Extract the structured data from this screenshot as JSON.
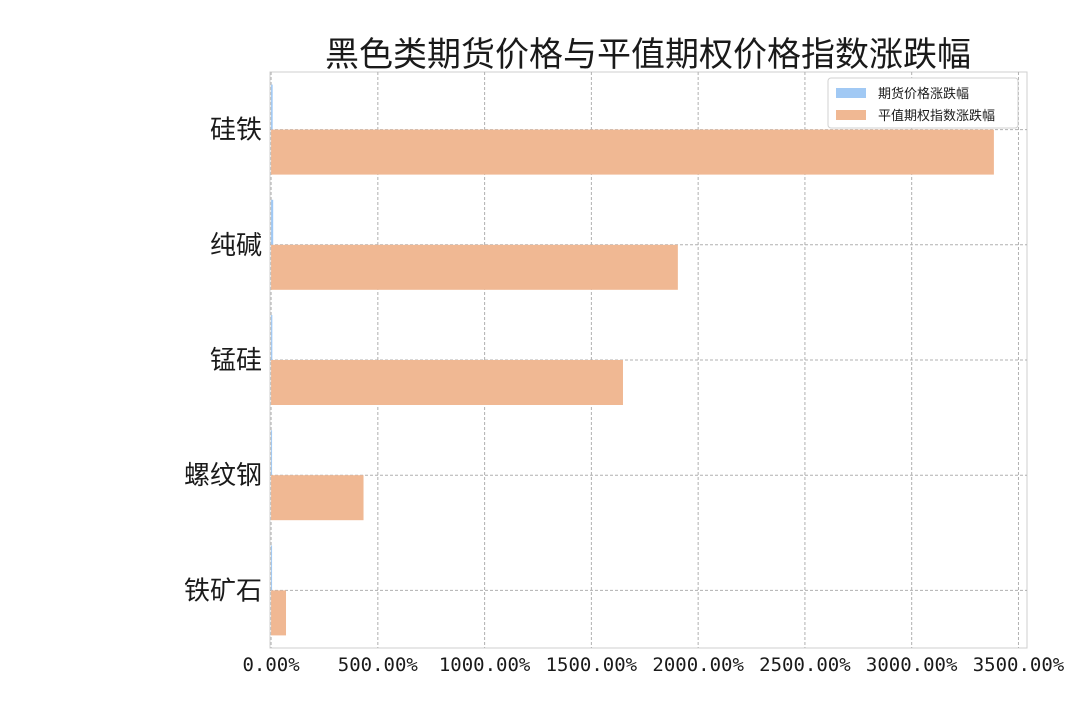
{
  "chart_data": {
    "type": "bar",
    "orientation": "horizontal",
    "title": "黑色类期货价格与平值期权价格指数涨跌幅",
    "categories": [
      "硅铁",
      "纯碱",
      "锰硅",
      "螺纹钢",
      "铁矿石"
    ],
    "series": [
      {
        "name": "期货价格涨跌幅",
        "color": "#a1c9f4",
        "values": [
          7.5,
          10.0,
          6.0,
          4.0,
          2.0
        ]
      },
      {
        "name": "平值期权指数涨跌幅",
        "color": "#f0b893",
        "values": [
          3385.0,
          1905.0,
          1648.0,
          433.0,
          70.0
        ]
      }
    ],
    "xlim": [
      -5,
      3540
    ],
    "xticks": [
      0,
      500,
      1000,
      1500,
      2000,
      2500,
      3000,
      3500
    ],
    "xtick_labels": [
      "0.00%",
      "500.00%",
      "1000.00%",
      "1500.00%",
      "2000.00%",
      "2500.00%",
      "3000.00%",
      "3500.00%"
    ],
    "grid": true,
    "legend_position": "top-right"
  }
}
